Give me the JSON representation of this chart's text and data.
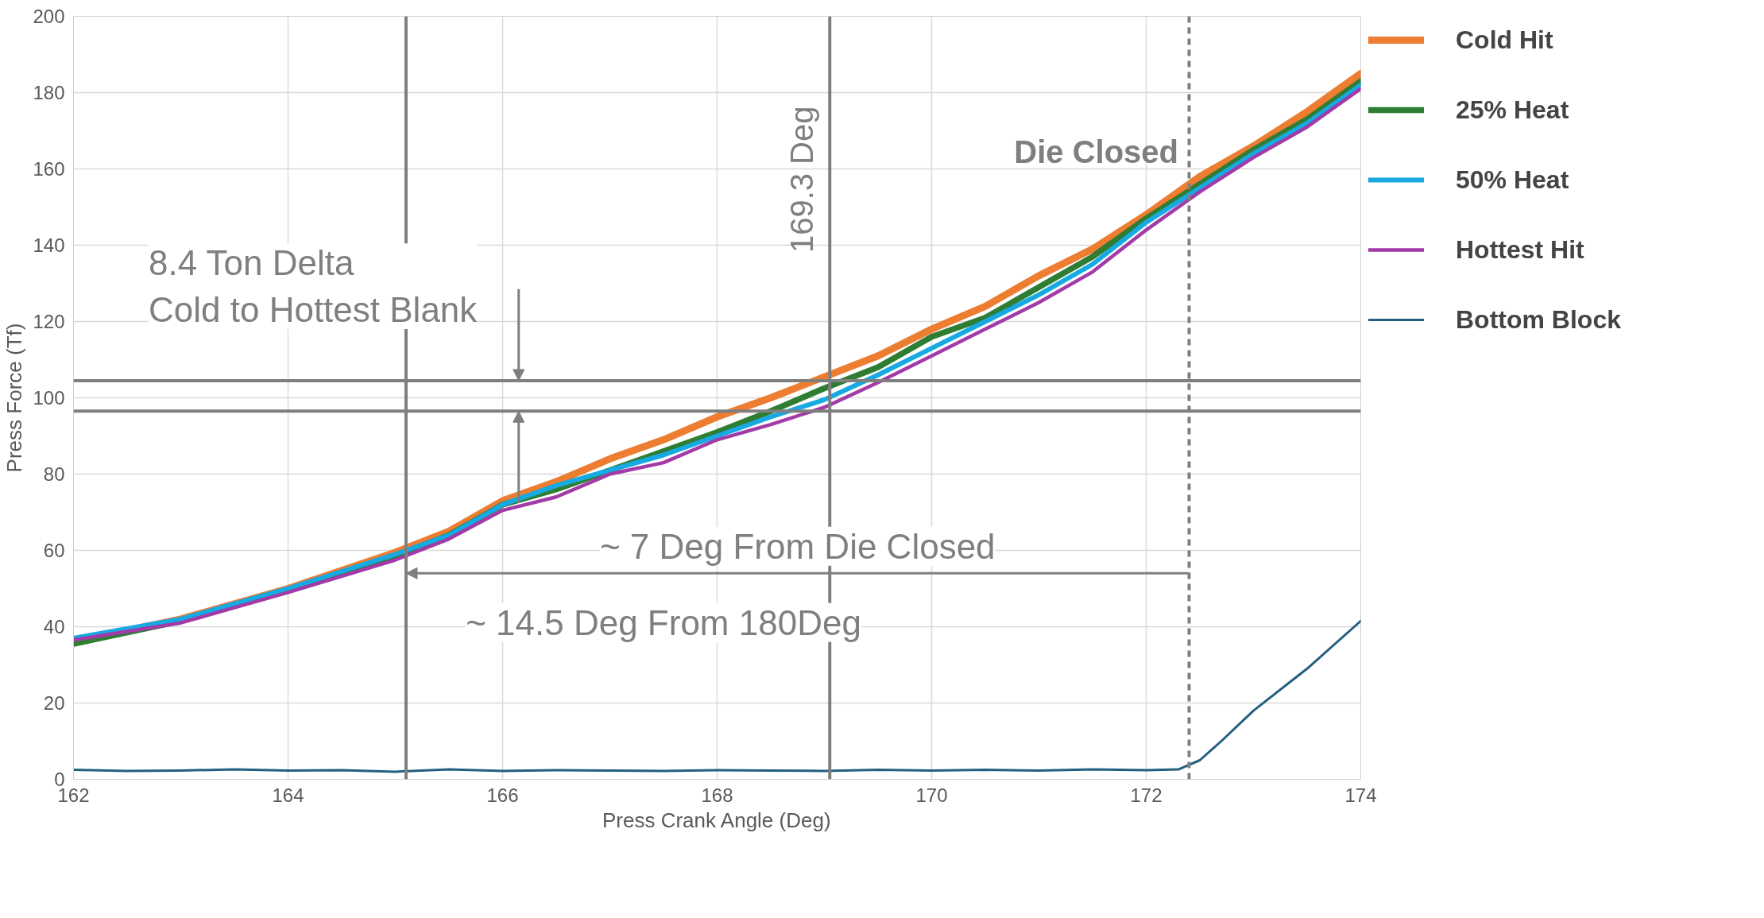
{
  "chart_data": {
    "type": "line",
    "xlabel": "Press Crank Angle (Deg)",
    "ylabel": "Press Force (Tf)",
    "x": [
      162,
      163,
      164,
      165,
      165.5,
      166,
      166.5,
      167,
      167.5,
      168,
      168.5,
      169,
      169.5,
      170,
      170.5,
      171,
      171.5,
      172,
      172.5,
      173,
      173.5,
      174
    ],
    "series": [
      {
        "name": "Cold Hit",
        "color": "#ed7d31",
        "values": [
          36,
          42,
          50,
          59.5,
          65,
          73,
          78,
          84,
          89,
          95,
          100,
          105.5,
          111,
          118,
          124,
          132,
          139,
          148,
          158,
          166,
          175,
          185
        ]
      },
      {
        "name": "25% Heat",
        "color": "#2e7d32",
        "values": [
          35.5,
          41.5,
          49.5,
          58.5,
          64,
          72,
          76,
          81,
          86,
          91,
          96.5,
          102.5,
          108,
          116,
          121,
          129,
          137,
          147,
          156,
          165,
          173,
          183
        ]
      },
      {
        "name": "50% Heat",
        "color": "#17a9e1",
        "values": [
          37,
          42,
          50,
          59,
          64,
          72,
          77,
          81,
          85,
          90,
          95,
          99.5,
          106,
          113,
          120,
          127,
          135,
          146,
          155,
          164,
          172,
          182
        ]
      },
      {
        "name": "Hottest Hit",
        "color": "#a23aa8",
        "values": [
          36.5,
          41,
          49,
          57.5,
          63,
          70.5,
          74,
          80,
          83,
          89,
          93,
          97.5,
          104,
          111,
          118,
          125,
          133,
          144,
          154,
          163,
          171,
          181
        ]
      },
      {
        "name": "Bottom Block",
        "color": "#23607f",
        "x": [
          162,
          162.5,
          163,
          163.5,
          164,
          164.5,
          165,
          165.5,
          166,
          166.5,
          167,
          167.5,
          168,
          168.5,
          169,
          169.5,
          170,
          170.5,
          171,
          171.5,
          172,
          172.3,
          172.5,
          172.7,
          173,
          173.5,
          174
        ],
        "values": [
          2.5,
          2.2,
          2.3,
          2.6,
          2.3,
          2.4,
          2,
          2.6,
          2.2,
          2.4,
          2.3,
          2.2,
          2.4,
          2.3,
          2.2,
          2.5,
          2.3,
          2.5,
          2.3,
          2.6,
          2.4,
          2.6,
          5,
          10,
          18,
          29,
          41.5
        ]
      }
    ],
    "xlim": [
      162,
      174
    ],
    "ylim": [
      0,
      200
    ],
    "xticks": [
      162,
      164,
      166,
      168,
      170,
      172,
      174
    ],
    "yticks": [
      0,
      20,
      40,
      60,
      80,
      100,
      120,
      140,
      160,
      180,
      200
    ],
    "grid": true,
    "legend": "right",
    "line_style": "solid",
    "ref_lines": [
      {
        "axis": "x",
        "value": 165.1,
        "label": null,
        "color": "#7f7f7f"
      },
      {
        "axis": "x",
        "value": 169.05,
        "label": "169.3 Deg",
        "color": "#7f7f7f"
      },
      {
        "axis": "x",
        "value": 172.4,
        "label": "Die Closed",
        "color": "#7f7f7f",
        "line_style": "dashed"
      },
      {
        "axis": "y",
        "value": 104.5,
        "label": null,
        "color": "#7f7f7f"
      },
      {
        "axis": "y",
        "value": 96.5,
        "label": null,
        "color": "#7f7f7f"
      }
    ],
    "annotations": [
      {
        "text": "8.4 Ton Delta\nCold to Hottest Blank",
        "x": 166.15,
        "y": 104.5
      },
      "~ 7 Deg From Die Closed",
      "~ 14.5 Deg From 180Deg"
    ]
  }
}
